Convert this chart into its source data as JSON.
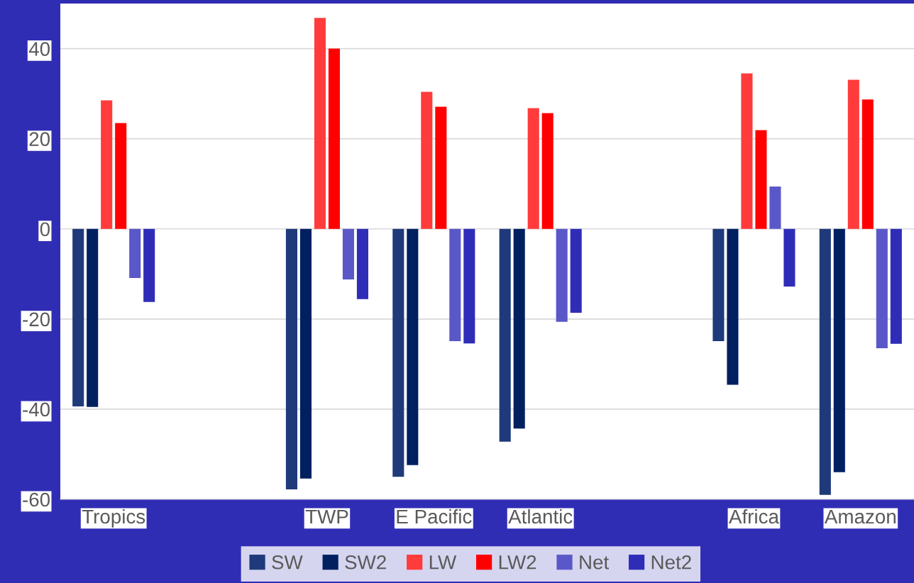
{
  "chart_data": {
    "type": "bar",
    "categories": [
      "Tropics",
      null,
      "TWP",
      "E Pacific",
      "Atlantic",
      null,
      "Africa",
      "Amazon"
    ],
    "series": [
      {
        "name": "SW",
        "color": "#1f3a7a",
        "values": [
          -39.4,
          null,
          -57.8,
          -55,
          -47.2,
          null,
          -24.9,
          -59
        ]
      },
      {
        "name": "SW2",
        "color": "#002060",
        "values": [
          -39.5,
          null,
          -55.4,
          -52.4,
          -44.3,
          null,
          -34.6,
          -54
        ]
      },
      {
        "name": "LW",
        "color": "#ff3b3b",
        "values": [
          28.5,
          null,
          46.8,
          30.4,
          26.8,
          null,
          34.5,
          33.1
        ]
      },
      {
        "name": "LW2",
        "color": "#ff0000",
        "values": [
          23.5,
          null,
          40,
          27.1,
          25.7,
          null,
          21.9,
          28.7
        ]
      },
      {
        "name": "Net",
        "color": "#5a58c8",
        "values": [
          -10.9,
          null,
          -11.2,
          -24.9,
          -20.6,
          null,
          9.4,
          -26.5
        ]
      },
      {
        "name": "Net2",
        "color": "#2f2db8",
        "values": [
          -16.2,
          null,
          -15.6,
          -25.4,
          -18.6,
          null,
          -12.8,
          -25.5
        ]
      }
    ],
    "ylim": [
      -60,
      50
    ],
    "yticks": [
      -60,
      -40,
      -20,
      0,
      20,
      40
    ],
    "grid": "y",
    "legend": "bottom"
  }
}
